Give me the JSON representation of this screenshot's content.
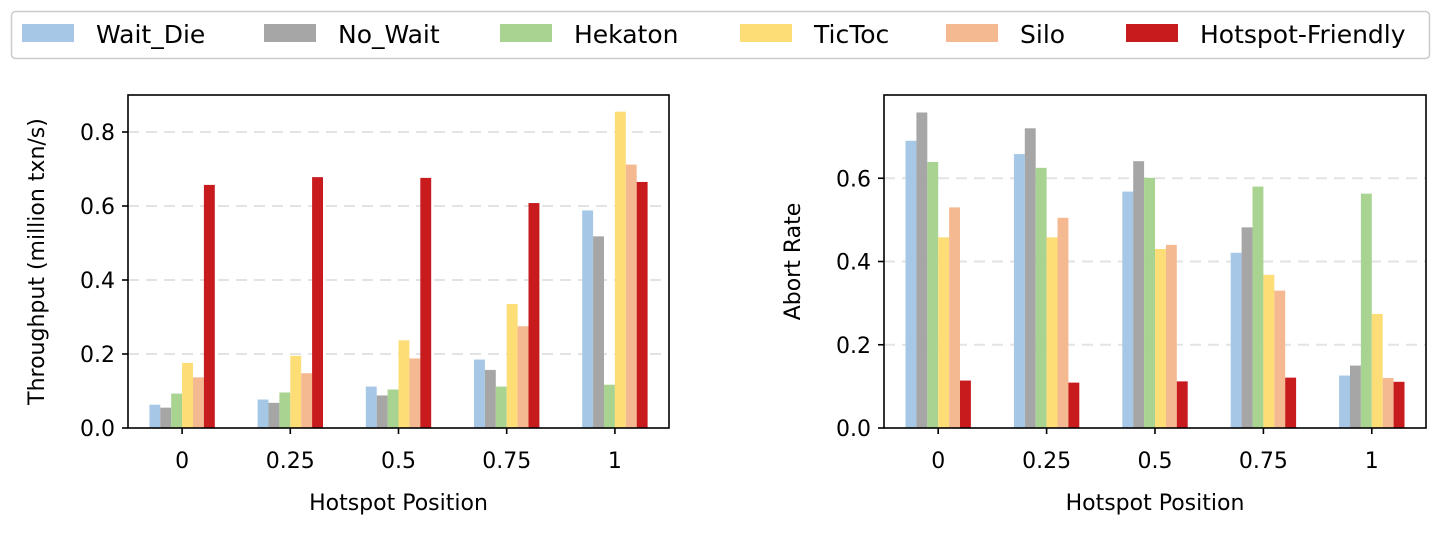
{
  "legend": {
    "items": [
      {
        "name": "Wait_Die",
        "color": "#a6c8e6"
      },
      {
        "name": "No_Wait",
        "color": "#a6a6a6"
      },
      {
        "name": "Hekaton",
        "color": "#a8d391"
      },
      {
        "name": "TicToc",
        "color": "#fddd75"
      },
      {
        "name": "Silo",
        "color": "#f5b992"
      },
      {
        "name": "Hotspot-Friendly",
        "color": "#c81b1e"
      }
    ]
  },
  "chart_data": [
    {
      "type": "bar",
      "title": "",
      "xlabel": "Hotspot Position",
      "ylabel": "Throughput (million txn/s)",
      "categories": [
        "0",
        "0.25",
        "0.5",
        "0.75",
        "1"
      ],
      "ylim": [
        0,
        0.9
      ],
      "yticks": [
        0.0,
        0.2,
        0.4,
        0.6,
        0.8
      ],
      "ytick_labels": [
        "0.0",
        "0.2",
        "0.4",
        "0.6",
        "0.8"
      ],
      "grid": "horizontal dashed",
      "series": [
        {
          "name": "Wait_Die",
          "values": [
            0.063,
            0.077,
            0.112,
            0.185,
            0.588
          ]
        },
        {
          "name": "No_Wait",
          "values": [
            0.055,
            0.068,
            0.088,
            0.157,
            0.518
          ]
        },
        {
          "name": "Hekaton",
          "values": [
            0.093,
            0.096,
            0.104,
            0.112,
            0.117
          ]
        },
        {
          "name": "TicToc",
          "values": [
            0.176,
            0.195,
            0.237,
            0.335,
            0.855
          ]
        },
        {
          "name": "Silo",
          "values": [
            0.137,
            0.148,
            0.188,
            0.275,
            0.712
          ]
        },
        {
          "name": "Hotspot-Friendly",
          "values": [
            0.657,
            0.678,
            0.676,
            0.608,
            0.665
          ]
        }
      ]
    },
    {
      "type": "bar",
      "title": "",
      "xlabel": "Hotspot Position",
      "ylabel": "Abort Rate",
      "categories": [
        "0",
        "0.25",
        "0.5",
        "0.75",
        "1"
      ],
      "ylim": [
        0,
        0.8
      ],
      "yticks": [
        0.0,
        0.2,
        0.4,
        0.6
      ],
      "ytick_labels": [
        "0.0",
        "0.2",
        "0.4",
        "0.6"
      ],
      "grid": "horizontal dashed",
      "series": [
        {
          "name": "Wait_Die",
          "values": [
            0.69,
            0.658,
            0.568,
            0.421,
            0.126
          ]
        },
        {
          "name": "No_Wait",
          "values": [
            0.758,
            0.72,
            0.641,
            0.482,
            0.15
          ]
        },
        {
          "name": "Hekaton",
          "values": [
            0.639,
            0.625,
            0.601,
            0.58,
            0.563
          ]
        },
        {
          "name": "TicToc",
          "values": [
            0.458,
            0.458,
            0.43,
            0.368,
            0.274
          ]
        },
        {
          "name": "Silo",
          "values": [
            0.53,
            0.505,
            0.44,
            0.33,
            0.12
          ]
        },
        {
          "name": "Hotspot-Friendly",
          "values": [
            0.114,
            0.109,
            0.112,
            0.121,
            0.111
          ]
        }
      ]
    }
  ]
}
